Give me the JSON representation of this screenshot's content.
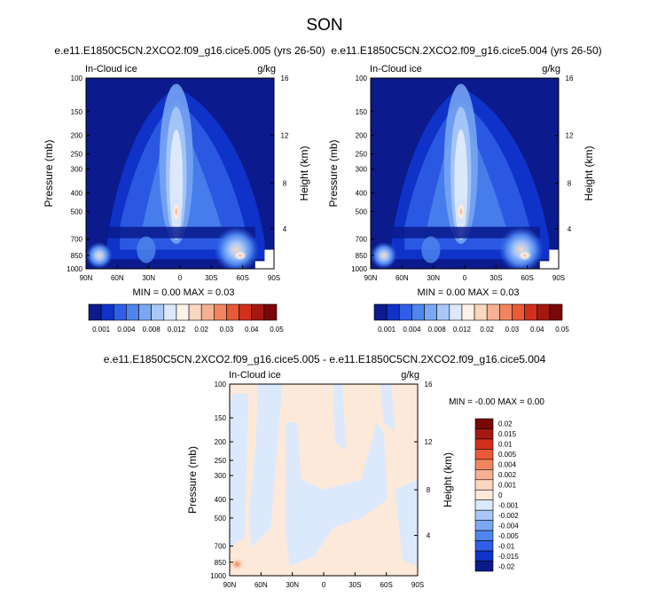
{
  "figure": {
    "title": "SON"
  },
  "chart_data": [
    {
      "type": "heatmap",
      "id": "panel1",
      "title": "e.e11.E1850C5CN.2XCO2.f09_g16.cice5.005 (yrs 26-50)",
      "variable": "In-Cloud ice",
      "units": "g/kg",
      "xlabel": "",
      "ylabel": "Pressure (mb)",
      "ylabel_right": "Height (km)",
      "x_ticks": [
        "90N",
        "60N",
        "30N",
        "0",
        "30S",
        "60S",
        "90S"
      ],
      "y_ticks": [
        "100",
        "150",
        "200",
        "250",
        "300",
        "400",
        "500",
        "700",
        "850",
        "1000"
      ],
      "y_right_ticks": [
        "16",
        "12",
        "8",
        "4"
      ],
      "stats_text": "MIN =  0.00  MAX =  0.03",
      "colorbar_labels": [
        "0.001",
        "0.004",
        "0.008",
        "0.012",
        "0.02",
        "0.03",
        "0.04",
        "0.05"
      ],
      "colorbar_colors": [
        "#0b1a8c",
        "#0f32c8",
        "#2f5fe6",
        "#4f86ee",
        "#7aa8f3",
        "#a9c8f8",
        "#dce9fc",
        "#fff2e6",
        "#fbd7c0",
        "#f6b092",
        "#f2855f",
        "#eb5a36",
        "#d32f1d",
        "#a51711",
        "#7a0707"
      ],
      "grid": false
    },
    {
      "type": "heatmap",
      "id": "panel2",
      "title": "e.e11.E1850C5CN.2XCO2.f09_g16.cice5.004 (yrs 26-50)",
      "variable": "In-Cloud ice",
      "units": "g/kg",
      "xlabel": "",
      "ylabel": "Pressure (mb)",
      "ylabel_right": "Height (km)",
      "x_ticks": [
        "90N",
        "60N",
        "30N",
        "0",
        "30S",
        "60S",
        "90S"
      ],
      "y_ticks": [
        "100",
        "150",
        "200",
        "250",
        "300",
        "400",
        "500",
        "700",
        "850",
        "1000"
      ],
      "y_right_ticks": [
        "16",
        "12",
        "8",
        "4"
      ],
      "stats_text": "MIN =  0.00  MAX =  0.03",
      "colorbar_labels": [
        "0.001",
        "0.004",
        "0.008",
        "0.012",
        "0.02",
        "0.03",
        "0.04",
        "0.05"
      ],
      "colorbar_colors": [
        "#0b1a8c",
        "#0f32c8",
        "#2f5fe6",
        "#4f86ee",
        "#7aa8f3",
        "#a9c8f8",
        "#dce9fc",
        "#fff2e6",
        "#fbd7c0",
        "#f6b092",
        "#f2855f",
        "#eb5a36",
        "#d32f1d",
        "#a51711",
        "#7a0707"
      ],
      "grid": false
    },
    {
      "type": "heatmap",
      "id": "panel3",
      "title": "e.e11.E1850C5CN.2XCO2.f09_g16.cice5.005 - e.e11.E1850C5CN.2XCO2.f09_g16.cice5.004",
      "variable": "In-Cloud ice",
      "units": "g/kg",
      "xlabel": "",
      "ylabel": "Pressure (mb)",
      "ylabel_right": "Height (km)",
      "x_ticks": [
        "90N",
        "60N",
        "30N",
        "0",
        "30S",
        "60S",
        "90S"
      ],
      "y_ticks": [
        "100",
        "150",
        "200",
        "250",
        "300",
        "400",
        "500",
        "700",
        "850",
        "1000"
      ],
      "y_right_ticks": [
        "16",
        "12",
        "8",
        "4"
      ],
      "stats_text": "MIN = -0.00  MAX =  0.00",
      "colorbar_labels": [
        "0.02",
        "0.015",
        "0.01",
        "0.005",
        "0.004",
        "0.002",
        "0.001",
        "0",
        "-0.001",
        "-0.002",
        "-0.004",
        "-0.005",
        "-0.01",
        "-0.015",
        "-0.02"
      ],
      "colorbar_colors": [
        "#7a0707",
        "#a51711",
        "#d32f1d",
        "#eb5a36",
        "#f2855f",
        "#f6b092",
        "#fbd7c0",
        "#fde9d9",
        "#dce9fc",
        "#a9c8f8",
        "#7aa8f3",
        "#4f86ee",
        "#2f5fe6",
        "#0f32c8",
        "#0b1a8c"
      ],
      "grid": false
    }
  ]
}
